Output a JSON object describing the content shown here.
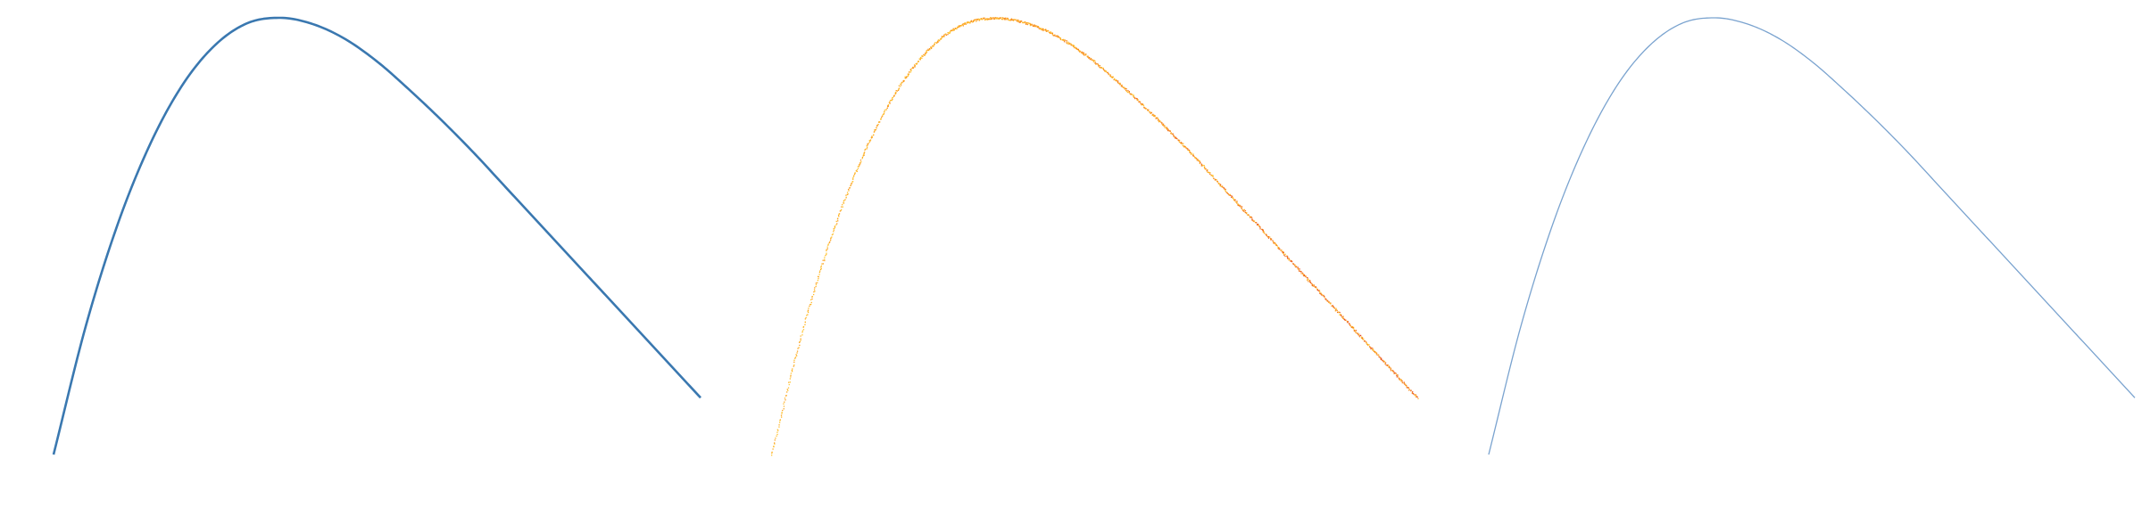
{
  "chart_data": [
    {
      "type": "line",
      "title": "",
      "xlabel": "",
      "ylabel": "",
      "grid": false,
      "legend": "none",
      "color": "#3a78b0",
      "render": "solid",
      "x": [
        0,
        0.05,
        0.1,
        0.15,
        0.2,
        0.25,
        0.3,
        0.35,
        0.4,
        0.45,
        0.5,
        0.55,
        0.6,
        0.65,
        0.7,
        0.75,
        0.8,
        0.85,
        0.9,
        0.95,
        1
      ],
      "y": [
        0,
        0.295,
        0.531,
        0.713,
        0.848,
        0.938,
        0.988,
        1.0,
        0.986,
        0.952,
        0.9,
        0.835,
        0.765,
        0.69,
        0.61,
        0.53,
        0.45,
        0.37,
        0.29,
        0.21,
        0.13
      ]
    },
    {
      "type": "scatter",
      "title": "",
      "xlabel": "",
      "ylabel": "",
      "grid": false,
      "legend": "none",
      "colormap": [
        "#ffdd44",
        "#ffb020",
        "#f47a1f",
        "#e0372b"
      ],
      "render": "dense-points",
      "x": [
        0,
        0.05,
        0.1,
        0.15,
        0.2,
        0.25,
        0.3,
        0.35,
        0.4,
        0.45,
        0.5,
        0.55,
        0.6,
        0.65,
        0.7,
        0.75,
        0.8,
        0.85,
        0.9,
        0.95,
        1
      ],
      "y": [
        0,
        0.295,
        0.531,
        0.713,
        0.848,
        0.938,
        0.988,
        1.0,
        0.986,
        0.952,
        0.9,
        0.835,
        0.765,
        0.69,
        0.61,
        0.53,
        0.45,
        0.37,
        0.29,
        0.21,
        0.13
      ]
    },
    {
      "type": "line",
      "title": "",
      "xlabel": "",
      "ylabel": "",
      "grid": false,
      "legend": "none",
      "color": "#7aa3cf",
      "render": "thin",
      "x": [
        0,
        0.05,
        0.1,
        0.15,
        0.2,
        0.25,
        0.3,
        0.35,
        0.4,
        0.45,
        0.5,
        0.55,
        0.6,
        0.65,
        0.7,
        0.75,
        0.8,
        0.85,
        0.9,
        0.95,
        1
      ],
      "y": [
        0,
        0.295,
        0.531,
        0.713,
        0.848,
        0.938,
        0.988,
        1.0,
        0.986,
        0.952,
        0.9,
        0.835,
        0.765,
        0.69,
        0.61,
        0.53,
        0.45,
        0.37,
        0.29,
        0.21,
        0.13
      ]
    }
  ]
}
